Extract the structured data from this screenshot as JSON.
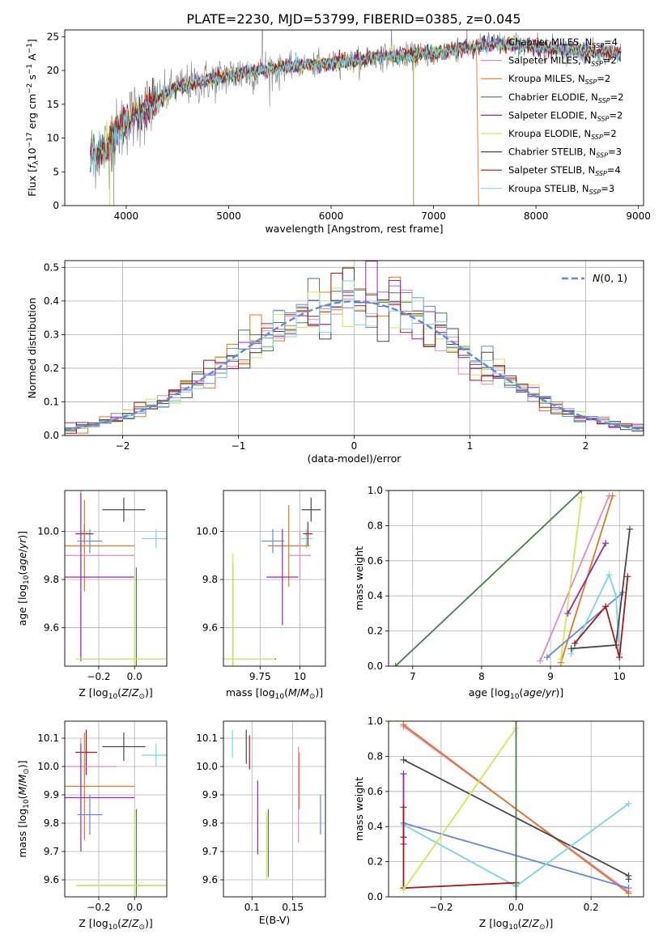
{
  "figure_title": "PLATE=2230, MJD=53799, FIBERID=0385, z=0.045",
  "colors": {
    "Chabrier MILES": "#6488e0",
    "Salpeter MILES": "#e088c8",
    "Kroupa MILES": "#e07820",
    "Chabrier ELODIE": "#488048",
    "Salpeter ELODIE": "#9828b0",
    "Kroupa ELODIE": "#d0e850",
    "Chabrier STELIB": "#484848",
    "Salpeter STELIB": "#a81818",
    "Kroupa STELIB": "#78d8e0",
    "normal": "#6488e0",
    "data": "#808080"
  },
  "chart_data": [
    {
      "id": "spectrum",
      "type": "line",
      "title": "PLATE=2230, MJD=53799, FIBERID=0385, z=0.045",
      "xlabel": "wavelength [Angstrom, rest frame]",
      "ylabel": "Flux [f_λ10^{-17} erg cm^{-2} s^{-1} A^{-1}]",
      "xlim": [
        3400,
        9050
      ],
      "ylim": [
        0,
        26
      ],
      "xticks": [
        4000,
        5000,
        6000,
        7000,
        8000,
        9000
      ],
      "yticks": [
        0,
        5,
        10,
        15,
        20,
        25
      ],
      "legend": "top-right",
      "legend_entries": [
        {
          "name": "Chabrier MILES",
          "nssp": "4"
        },
        {
          "name": "Salpeter MILES",
          "nssp": "2"
        },
        {
          "name": "Kroupa MILES",
          "nssp": "2"
        },
        {
          "name": "Chabrier ELODIE",
          "nssp": "2"
        },
        {
          "name": "Salpeter ELODIE",
          "nssp": "2"
        },
        {
          "name": "Kroupa ELODIE",
          "nssp": "2"
        },
        {
          "name": "Chabrier STELIB",
          "nssp": "3"
        },
        {
          "name": "Salpeter STELIB",
          "nssp": "4"
        },
        {
          "name": "Kroupa STELIB",
          "nssp": "3"
        }
      ],
      "continuum": {
        "x": [
          3650,
          3800,
          3900,
          4000,
          4100,
          4300,
          4500,
          4800,
          5000,
          5300,
          5600,
          6000,
          6500,
          7000,
          7400,
          7600,
          8000,
          8400,
          8800
        ],
        "y": [
          7.5,
          8.5,
          10.5,
          12.5,
          13.5,
          15.5,
          17.5,
          18.5,
          19.3,
          20,
          20.6,
          21,
          22,
          22.5,
          23.5,
          24,
          23.5,
          23,
          22.5
        ]
      }
    },
    {
      "id": "residuals",
      "type": "histogram",
      "xlabel": "(data-model)/error",
      "ylabel": "Normed distribution",
      "xlim": [
        -2.5,
        2.5
      ],
      "ylim": [
        0,
        0.52
      ],
      "xticks": [
        -2,
        -1,
        0,
        1,
        2
      ],
      "yticks": [
        0.0,
        0.1,
        0.2,
        0.3,
        0.4,
        0.5
      ],
      "grid": true,
      "legend": "top-right",
      "legend_label": "N(0,1)",
      "bins": 50
    },
    {
      "id": "age_vs_Z",
      "type": "errorbar",
      "xlabel": "Z [log10(Z/Z_sun)]",
      "ylabel": "age [log10(age/yr)]",
      "xlim": [
        -0.39,
        0.18
      ],
      "ylim": [
        9.44,
        10.17
      ],
      "xticks": [
        -0.2,
        0.0
      ],
      "yticks": [
        9.6,
        9.8,
        10.0
      ],
      "grid": true,
      "points": [
        {
          "series": "Chabrier STELIB",
          "x": -0.06,
          "y": 10.09,
          "xerr": 0.12,
          "yerr": 0.05
        },
        {
          "series": "Kroupa STELIB",
          "x": 0.12,
          "y": 9.97,
          "xerr": 0.08,
          "yerr": 0.04
        },
        {
          "series": "Chabrier MILES",
          "x": -0.25,
          "y": 9.96,
          "xerr": 0.07,
          "yerr": 0.05
        },
        {
          "series": "Salpeter STELIB",
          "x": -0.28,
          "y": 9.99,
          "xerr": 0.05,
          "yerr": 0.04
        },
        {
          "series": "Kroupa MILES",
          "x": -0.28,
          "y": 9.94,
          "xerr": 0.28,
          "yerr": 0.19
        },
        {
          "series": "Salpeter MILES",
          "x": -0.3,
          "y": 9.9,
          "xerr": 0.3,
          "yerr": 0.42
        },
        {
          "series": "Salpeter ELODIE",
          "x": -0.3,
          "y": 9.81,
          "xerr": 0.3,
          "yerr": 0.35
        },
        {
          "series": "Chabrier ELODIE",
          "x": 0.01,
          "y": 9.47,
          "xerr": 0.33,
          "yerr": 0.38
        },
        {
          "series": "Kroupa ELODIE",
          "x": 0.0,
          "y": 9.47,
          "xerr": 0.33,
          "yerr": 0.35
        }
      ]
    },
    {
      "id": "age_vs_mass",
      "type": "errorbar",
      "xlabel": "mass [log10(M/M_sun)]",
      "ylabel": "",
      "xlim": [
        9.52,
        10.16
      ],
      "ylim": [
        9.44,
        10.17
      ],
      "xticks": [
        9.75,
        10.0
      ],
      "yticks": [
        9.6,
        9.8,
        10.0
      ],
      "grid": true,
      "points": [
        {
          "series": "Chabrier STELIB",
          "x": 10.07,
          "y": 10.09,
          "xerr": 0.06,
          "yerr": 0.05
        },
        {
          "series": "Kroupa STELIB",
          "x": 10.04,
          "y": 9.97,
          "xerr": 0.04,
          "yerr": 0.04
        },
        {
          "series": "Chabrier MILES",
          "x": 9.83,
          "y": 9.96,
          "xerr": 0.07,
          "yerr": 0.05
        },
        {
          "series": "Salpeter STELIB",
          "x": 10.05,
          "y": 9.99,
          "xerr": 0.03,
          "yerr": 0.05
        },
        {
          "series": "Kroupa MILES",
          "x": 9.93,
          "y": 9.94,
          "xerr": 0.13,
          "yerr": 0.17
        },
        {
          "series": "Salpeter MILES",
          "x": 10.0,
          "y": 9.9,
          "xerr": 0.07,
          "yerr": 0.1
        },
        {
          "series": "Salpeter ELODIE",
          "x": 9.89,
          "y": 9.81,
          "xerr": 0.1,
          "yerr": 0.2
        },
        {
          "series": "Chabrier ELODIE",
          "x": 9.58,
          "y": 9.47,
          "xerr": 0.27,
          "yerr": 0.4
        },
        {
          "series": "Kroupa ELODIE",
          "x": 9.58,
          "y": 9.47,
          "xerr": 0.26,
          "yerr": 0.44
        }
      ]
    },
    {
      "id": "weight_vs_age",
      "type": "line",
      "xlabel": "age [log10(age/yr)]",
      "ylabel": "mass weight",
      "xlim": [
        6.65,
        10.35
      ],
      "ylim": [
        0,
        1.0
      ],
      "xticks": [
        7,
        8,
        9,
        10
      ],
      "yticks": [
        0.0,
        0.2,
        0.4,
        0.6,
        0.8,
        1.0
      ],
      "grid": true,
      "series": [
        {
          "name": "Chabrier ELODIE",
          "x": [
            6.75,
            9.45
          ],
          "y": [
            0.0,
            1.0
          ]
        },
        {
          "name": "Salpeter MILES",
          "x": [
            8.85,
            9.85
          ],
          "y": [
            0.03,
            0.97
          ]
        },
        {
          "name": "Kroupa MILES",
          "x": [
            9.15,
            9.9
          ],
          "y": [
            0.02,
            0.97
          ]
        },
        {
          "name": "Kroupa ELODIE",
          "x": [
            9.15,
            9.45
          ],
          "y": [
            0.04,
            0.96
          ]
        },
        {
          "name": "Salpeter ELODIE",
          "x": [
            9.25,
            9.8
          ],
          "y": [
            0.3,
            0.7
          ]
        },
        {
          "name": "Chabrier MILES",
          "x": [
            8.95,
            10.05
          ],
          "y": [
            0.05,
            0.42
          ]
        },
        {
          "name": "Kroupa STELIB",
          "x": [
            9.3,
            9.85,
            9.95,
            10.0
          ],
          "y": [
            0.07,
            0.52,
            0.4,
            0.07
          ]
        },
        {
          "name": "Chabrier STELIB",
          "x": [
            9.3,
            9.95,
            10.15
          ],
          "y": [
            0.1,
            0.12,
            0.78
          ]
        },
        {
          "name": "Salpeter STELIB",
          "x": [
            9.35,
            9.8,
            10.0,
            10.12
          ],
          "y": [
            0.13,
            0.34,
            0.05,
            0.51
          ]
        }
      ]
    },
    {
      "id": "mass_vs_Z",
      "type": "errorbar",
      "xlabel": "Z [log10(Z/Z_sun)]",
      "ylabel": "mass [log10(M/M_sun)]",
      "xlim": [
        -0.39,
        0.18
      ],
      "ylim": [
        9.54,
        10.16
      ],
      "xticks": [
        -0.2,
        0.0
      ],
      "yticks": [
        9.6,
        9.7,
        9.8,
        9.9,
        10.0,
        10.1
      ],
      "grid": true,
      "points": [
        {
          "series": "Chabrier STELIB",
          "x": -0.06,
          "y": 10.07,
          "xerr": 0.12,
          "yerr": 0.05
        },
        {
          "series": "Kroupa STELIB",
          "x": 0.12,
          "y": 10.04,
          "xerr": 0.08,
          "yerr": 0.04
        },
        {
          "series": "Salpeter STELIB",
          "x": -0.27,
          "y": 10.05,
          "xerr": 0.06,
          "yerr": 0.08
        },
        {
          "series": "Salpeter MILES",
          "x": -0.3,
          "y": 10.0,
          "xerr": 0.2,
          "yerr": 0.1
        },
        {
          "series": "Kroupa MILES",
          "x": -0.28,
          "y": 9.93,
          "xerr": 0.28,
          "yerr": 0.19
        },
        {
          "series": "Salpeter ELODIE",
          "x": -0.3,
          "y": 9.89,
          "xerr": 0.3,
          "yerr": 0.19
        },
        {
          "series": "Chabrier MILES",
          "x": -0.25,
          "y": 9.83,
          "xerr": 0.07,
          "yerr": 0.07
        },
        {
          "series": "Chabrier ELODIE",
          "x": 0.01,
          "y": 9.58,
          "xerr": 0.33,
          "yerr": 0.27
        },
        {
          "series": "Kroupa ELODIE",
          "x": 0.0,
          "y": 9.58,
          "xerr": 0.33,
          "yerr": 0.26
        }
      ]
    },
    {
      "id": "mass_vs_EBV",
      "type": "errorbar",
      "xlabel": "E(B-V)",
      "ylabel": "",
      "xlim": [
        0.065,
        0.19
      ],
      "ylim": [
        9.54,
        10.16
      ],
      "xticks": [
        0.1,
        0.15
      ],
      "yticks": [
        9.6,
        9.7,
        9.8,
        9.9,
        10.0,
        10.1
      ],
      "grid": true,
      "points": [
        {
          "series": "Kroupa STELIB",
          "x": 0.076,
          "y": 10.08,
          "yerr": 0.05
        },
        {
          "series": "Chabrier STELIB",
          "x": 0.093,
          "y": 10.07,
          "yerr": 0.06
        },
        {
          "series": "Salpeter STELIB",
          "x": 0.097,
          "y": 10.05,
          "yerr": 0.06
        },
        {
          "series": "Salpeter ELODIE",
          "x": 0.107,
          "y": 9.82,
          "yerr": 0.13
        },
        {
          "series": "Kroupa ELODIE",
          "x": 0.118,
          "y": 9.72,
          "yerr": 0.12
        },
        {
          "series": "Chabrier ELODIE",
          "x": 0.12,
          "y": 9.73,
          "yerr": 0.12
        },
        {
          "series": "Kroupa MILES",
          "x": 0.158,
          "y": 9.95,
          "yerr": 0.1
        },
        {
          "series": "Salpeter MILES",
          "x": 0.157,
          "y": 9.9,
          "yerr": 0.17
        },
        {
          "series": "Chabrier MILES",
          "x": 0.184,
          "y": 9.83,
          "yerr": 0.07
        }
      ]
    },
    {
      "id": "weight_vs_Z",
      "type": "line",
      "xlabel": "Z [log10(Z/Z_sun)]",
      "ylabel": "mass weight",
      "xlim": [
        -0.34,
        0.34
      ],
      "ylim": [
        0,
        1.0
      ],
      "xticks": [
        -0.2,
        0.0,
        0.2
      ],
      "yticks": [
        0.0,
        0.2,
        0.4,
        0.6,
        0.8,
        1.0
      ],
      "grid": true,
      "series": [
        {
          "name": "Salpeter MILES",
          "x": [
            -0.3,
            0.3
          ],
          "y": [
            0.97,
            0.03
          ]
        },
        {
          "name": "Kroupa MILES",
          "x": [
            -0.3,
            0.3
          ],
          "y": [
            0.98,
            0.02
          ]
        },
        {
          "name": "Chabrier STELIB",
          "x": [
            -0.3,
            0.3,
            0.3
          ],
          "y": [
            0.78,
            0.12,
            0.1
          ]
        },
        {
          "name": "Salpeter ELODIE",
          "x": [
            -0.3,
            -0.3
          ],
          "y": [
            0.7,
            0.3
          ]
        },
        {
          "name": "Chabrier MILES",
          "x": [
            -0.3,
            0.3
          ],
          "y": [
            0.42,
            0.05
          ]
        },
        {
          "name": "Kroupa STELIB",
          "x": [
            -0.3,
            0.0,
            0.3
          ],
          "y": [
            0.41,
            0.06,
            0.53
          ]
        },
        {
          "name": "Salpeter STELIB",
          "x": [
            -0.3,
            -0.3,
            -0.3,
            0.0
          ],
          "y": [
            0.51,
            0.34,
            0.05,
            0.08
          ]
        },
        {
          "name": "Kroupa ELODIE",
          "x": [
            -0.3,
            0.0
          ],
          "y": [
            0.04,
            0.96
          ]
        },
        {
          "name": "Chabrier ELODIE",
          "x": [
            0.0,
            0.0
          ],
          "y": [
            0.0,
            1.0
          ]
        }
      ]
    }
  ]
}
